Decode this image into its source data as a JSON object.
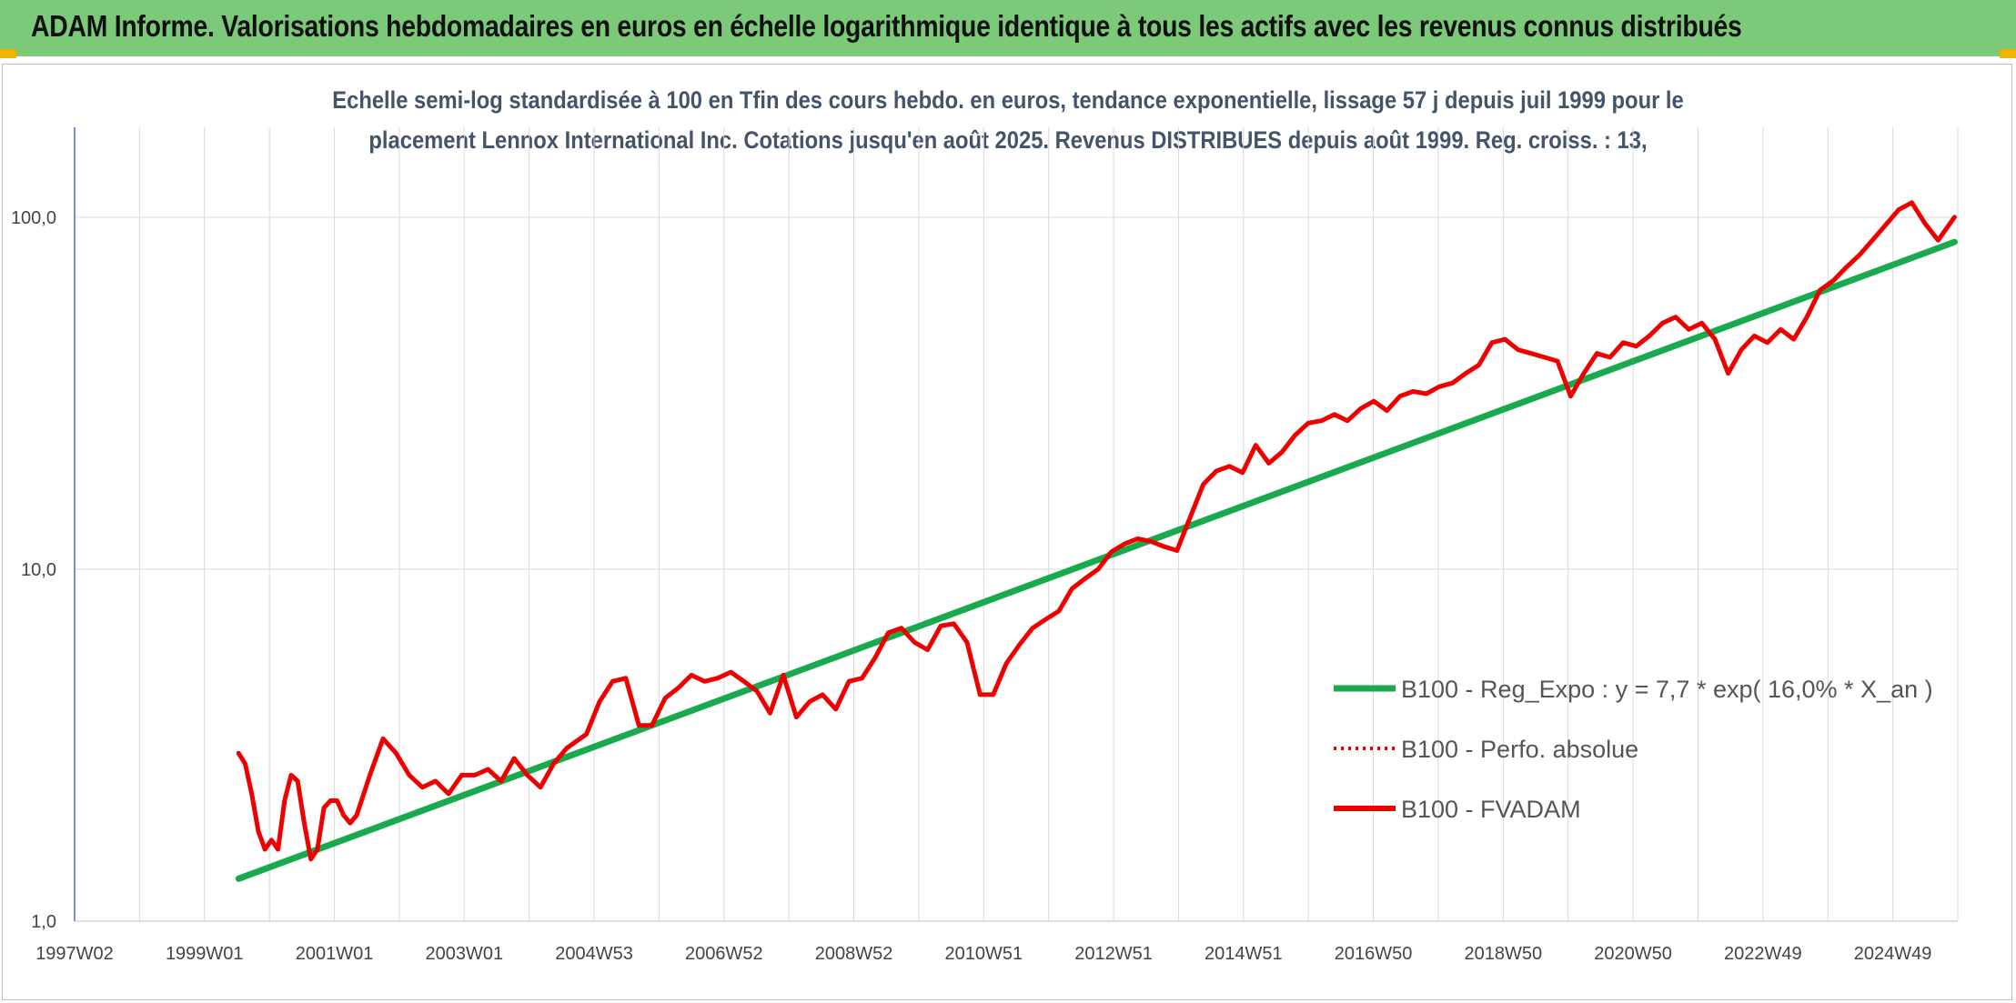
{
  "header": {
    "title": "ADAM Informe. Valorisations hebdomadaires en euros en échelle logarithmique identique à tous les actifs avec les revenus connus distribués"
  },
  "colors": {
    "banner": "#7cc97a",
    "trend": "#1aaa4e",
    "fvadam": "#ee0000",
    "perfo": "#ee0000",
    "grid": "#d9d9d9",
    "axis": "#4472c4"
  },
  "chart_data": {
    "type": "line",
    "title": "Echelle semi-log standardisée à 100 en Tfin des cours hebdo. en euros, tendance exponentielle, lissage 57 j depuis juil 1999 pour le",
    "subtitle": "placement Lennox International Inc. Cotations jusqu'en août 2025. Revenus DISTRIBUES depuis août 1999. Reg. croiss. : 13,",
    "xlabel": "",
    "ylabel": "",
    "y_scale": "log",
    "ylim": [
      1,
      180
    ],
    "grid": true,
    "legend_position": "right",
    "y_ticks": [
      {
        "value": 1,
        "label": "1,0"
      },
      {
        "value": 10,
        "label": "10,0"
      },
      {
        "value": 100,
        "label": "100,0"
      }
    ],
    "x_ticks": [
      "1997W02",
      "1999W01",
      "2001W01",
      "2003W01",
      "2004W53",
      "2006W52",
      "2008W52",
      "2010W51",
      "2012W51",
      "2014W51",
      "2016W50",
      "2018W50",
      "2020W50",
      "2022W49",
      "2024W49"
    ],
    "x_range": [
      1997.0,
      2025.7
    ],
    "series": [
      {
        "name": "B100 - Reg_Expo : y = 7,7 * exp( 16,0% *  X_an )",
        "style": "solid-thick",
        "x": [
          1999.5,
          2025.65
        ],
        "y": [
          1.32,
          85.0
        ]
      },
      {
        "name": "B100 - Perfo. absolue",
        "style": "dotted",
        "x": [],
        "y": []
      },
      {
        "name": "B100 - FVADAM",
        "style": "solid",
        "x": [
          1999.5,
          1999.6,
          1999.7,
          1999.8,
          1999.9,
          2000.0,
          2000.1,
          2000.2,
          2000.3,
          2000.4,
          2000.5,
          2000.6,
          2000.7,
          2000.8,
          2000.9,
          2001.0,
          2001.1,
          2001.2,
          2001.3,
          2001.5,
          2001.7,
          2001.9,
          2002.1,
          2002.3,
          2002.5,
          2002.7,
          2002.9,
          2003.1,
          2003.3,
          2003.5,
          2003.7,
          2003.9,
          2004.1,
          2004.3,
          2004.5,
          2004.8,
          2005.0,
          2005.2,
          2005.4,
          2005.6,
          2005.8,
          2006.0,
          2006.2,
          2006.4,
          2006.6,
          2006.8,
          2007.0,
          2007.2,
          2007.4,
          2007.6,
          2007.8,
          2008.0,
          2008.2,
          2008.4,
          2008.6,
          2008.8,
          2009.0,
          2009.2,
          2009.4,
          2009.6,
          2009.8,
          2010.0,
          2010.2,
          2010.4,
          2010.6,
          2010.8,
          2011.0,
          2011.2,
          2011.4,
          2011.6,
          2011.8,
          2012.0,
          2012.2,
          2012.4,
          2012.6,
          2012.8,
          2013.0,
          2013.2,
          2013.4,
          2013.6,
          2013.8,
          2014.0,
          2014.2,
          2014.4,
          2014.6,
          2014.8,
          2015.0,
          2015.2,
          2015.4,
          2015.6,
          2015.8,
          2016.0,
          2016.2,
          2016.4,
          2016.6,
          2016.8,
          2017.0,
          2017.2,
          2017.4,
          2017.6,
          2017.8,
          2018.0,
          2018.2,
          2018.4,
          2018.6,
          2018.8,
          2019.0,
          2019.2,
          2019.4,
          2019.6,
          2019.8,
          2020.0,
          2020.2,
          2020.4,
          2020.6,
          2020.8,
          2021.0,
          2021.2,
          2021.4,
          2021.6,
          2021.8,
          2022.0,
          2022.2,
          2022.4,
          2022.6,
          2022.8,
          2023.0,
          2023.2,
          2023.4,
          2023.6,
          2023.8,
          2024.0,
          2024.2,
          2024.4,
          2024.6,
          2024.8,
          2025.0,
          2025.2,
          2025.4,
          2025.65
        ],
        "y": [
          3.0,
          2.8,
          2.3,
          1.8,
          1.6,
          1.7,
          1.6,
          2.2,
          2.6,
          2.5,
          1.9,
          1.5,
          1.6,
          2.1,
          2.2,
          2.2,
          2.0,
          1.9,
          2.0,
          2.6,
          3.3,
          3.0,
          2.6,
          2.4,
          2.5,
          2.3,
          2.6,
          2.6,
          2.7,
          2.5,
          2.9,
          2.6,
          2.4,
          2.8,
          3.1,
          3.4,
          4.2,
          4.8,
          4.9,
          3.6,
          3.6,
          4.3,
          4.6,
          5.0,
          4.8,
          4.9,
          5.1,
          4.8,
          4.5,
          3.9,
          5.0,
          3.8,
          4.2,
          4.4,
          4.0,
          4.8,
          4.9,
          5.6,
          6.6,
          6.8,
          6.2,
          5.9,
          6.9,
          7.0,
          6.2,
          4.4,
          4.4,
          5.4,
          6.1,
          6.8,
          7.2,
          7.6,
          8.8,
          9.4,
          10.0,
          11.2,
          11.8,
          12.2,
          12.0,
          11.6,
          11.3,
          14.0,
          17.4,
          19.0,
          19.6,
          18.8,
          22.5,
          20.0,
          21.5,
          24.0,
          26.0,
          26.4,
          27.5,
          26.4,
          28.6,
          30.0,
          28.2,
          31.0,
          32.0,
          31.5,
          33.0,
          33.8,
          36.0,
          38.0,
          44.0,
          45.0,
          42.0,
          41.0,
          40.0,
          39.0,
          31.0,
          36.0,
          41.0,
          40.0,
          44.0,
          43.0,
          46.0,
          50.0,
          52.0,
          48.0,
          50.0,
          45.0,
          36.0,
          42.0,
          46.0,
          44.0,
          48.0,
          45.0,
          52.0,
          62.0,
          66.0,
          72.0,
          78.0,
          86.0,
          95.0,
          105.0,
          110.0,
          96.0,
          86.0,
          100.0
        ]
      }
    ]
  }
}
